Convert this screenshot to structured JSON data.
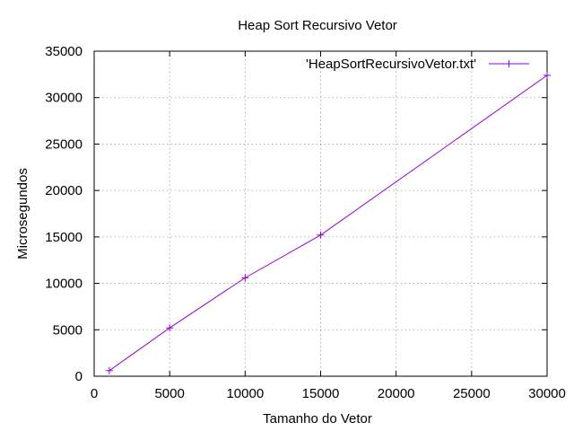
{
  "chart_data": {
    "type": "line",
    "title": "Heap Sort Recursivo Vetor",
    "xlabel": "Tamanho do Vetor",
    "ylabel": "Microsegundos",
    "xlim": [
      0,
      30000
    ],
    "ylim": [
      0,
      35000
    ],
    "xticks": [
      0,
      5000,
      10000,
      15000,
      20000,
      25000,
      30000
    ],
    "yticks": [
      0,
      5000,
      10000,
      15000,
      20000,
      25000,
      30000,
      35000
    ],
    "grid": true,
    "legend_position": "top-right",
    "series": [
      {
        "name": "'HeapSortRecursivoVetor.txt'",
        "color": "#9400d3",
        "marker": "plus",
        "x": [
          1000,
          5000,
          10000,
          15000,
          30000
        ],
        "y": [
          600,
          5200,
          10600,
          15200,
          32400
        ]
      }
    ]
  }
}
